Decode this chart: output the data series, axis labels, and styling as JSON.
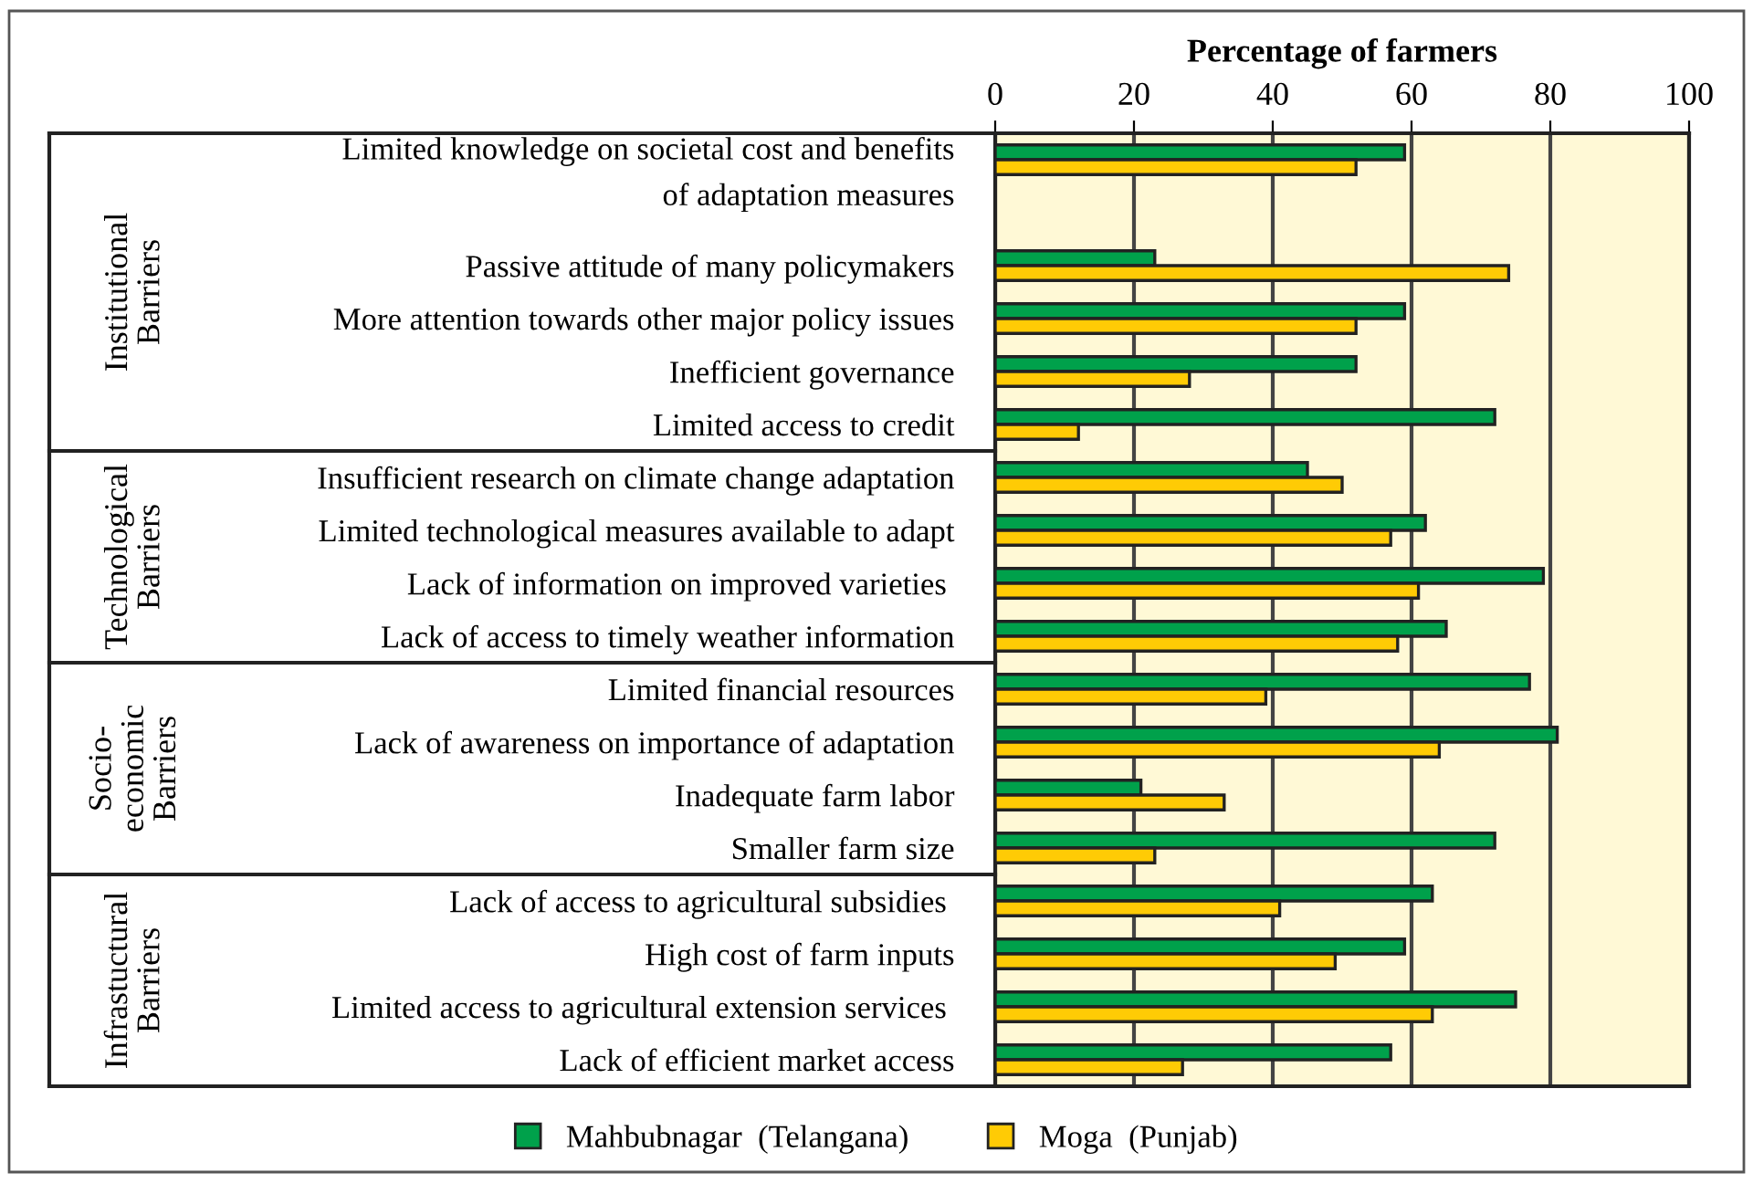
{
  "chart_data": {
    "type": "bar",
    "orientation": "horizontal",
    "xlabel": "Percentage of farmers",
    "categories": [
      "Limited knowledge on societal cost and benefits\nof adaptation measures",
      null,
      "Passive attitude of many policymakers",
      "More attention towards other major policy issues",
      "Inefficient governance",
      "Limited access to credit",
      "Insufficient research on climate change adaptation",
      "Limited technological measures available to adapt",
      "Lack of information on improved varieties ",
      "Lack of access to timely weather information",
      "Limited financial resources",
      "Lack of awareness on importance of adaptation",
      "Inadequate farm labor",
      "Smaller farm size",
      "Lack of access to agricultural subsidies ",
      "High cost of farm inputs",
      "Limited access to agricultural extension services ",
      "Lack of efficient market access"
    ],
    "series": [
      {
        "name": "Mahbubnagar  (Telangana)",
        "color": "#00a14b",
        "values": [
          59,
          null,
          23,
          59,
          52,
          72,
          45,
          62,
          79,
          65,
          77,
          81,
          21,
          72,
          63,
          59,
          75,
          57
        ]
      },
      {
        "name": "Moga  (Punjab)",
        "color": "#ffcb05",
        "values": [
          52,
          null,
          74,
          52,
          28,
          12,
          50,
          57,
          61,
          58,
          39,
          64,
          33,
          23,
          41,
          49,
          63,
          27
        ]
      }
    ],
    "xlim": [
      0,
      100
    ],
    "xticks": [
      0,
      20,
      40,
      60,
      80,
      100
    ],
    "grid": "x",
    "legend": "bottom",
    "annotations": [
      "Institutional\nBarriers",
      "Technological\nBarriers",
      "Socio-\neconomic\nBarriers",
      "Infrastuctural\nBarriers"
    ]
  }
}
